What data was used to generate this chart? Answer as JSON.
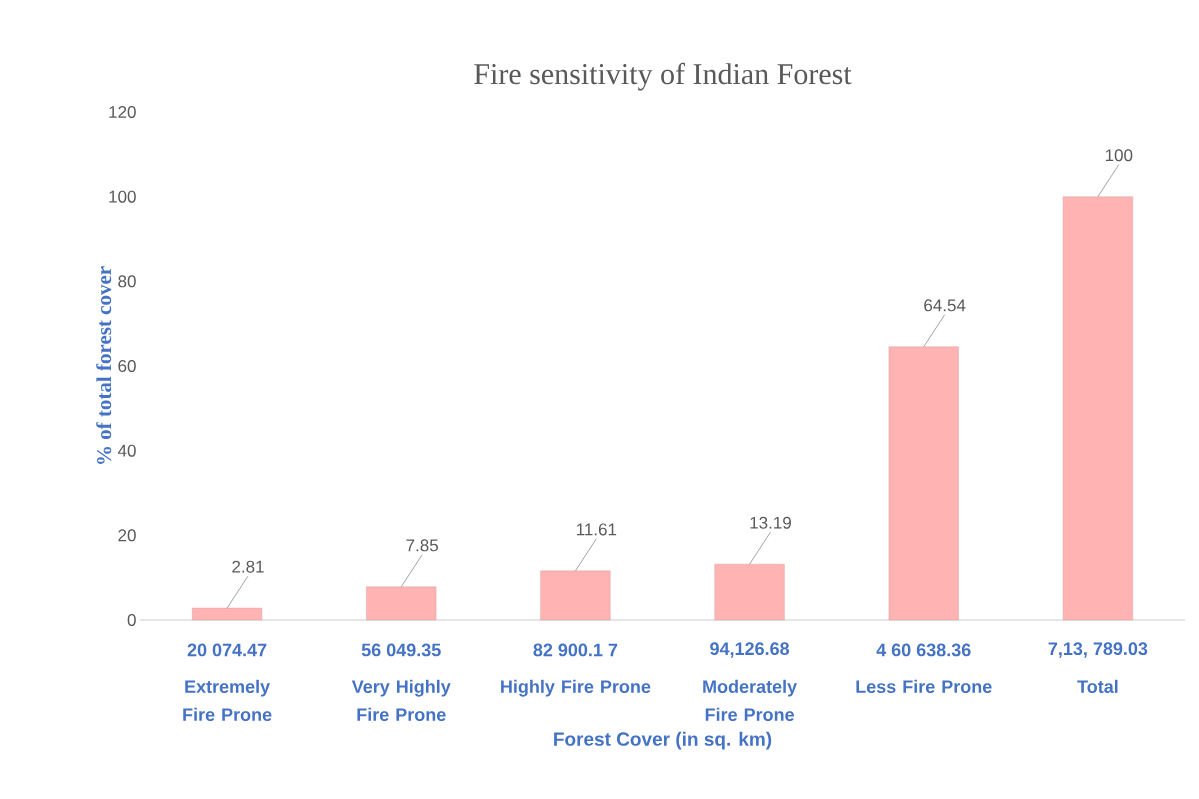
{
  "chart_data": {
    "type": "bar",
    "title": "Fire sensitivity of Indian Forest",
    "xlabel": "Forest Cover (in sq. km)",
    "ylabel": "% of total forest cover",
    "categories": [
      "Extremely Fire Prone",
      "Very Highly Fire Prone",
      "Highly Fire Prone",
      "Moderately Fire Prone",
      "Less Fire Prone",
      "Total"
    ],
    "values": [
      2.81,
      7.85,
      11.61,
      13.19,
      64.54,
      100
    ],
    "color": "#ffb3b3",
    "data_labels": true,
    "ylim": [
      0,
      120
    ],
    "yticks": [
      0,
      20,
      40,
      60,
      80,
      100,
      120
    ],
    "annotations": [
      "20 074.47",
      "56 049.35",
      "82 900.1 7",
      "94,126.68",
      "4 60 638.36",
      "7,13, 789.03"
    ]
  }
}
